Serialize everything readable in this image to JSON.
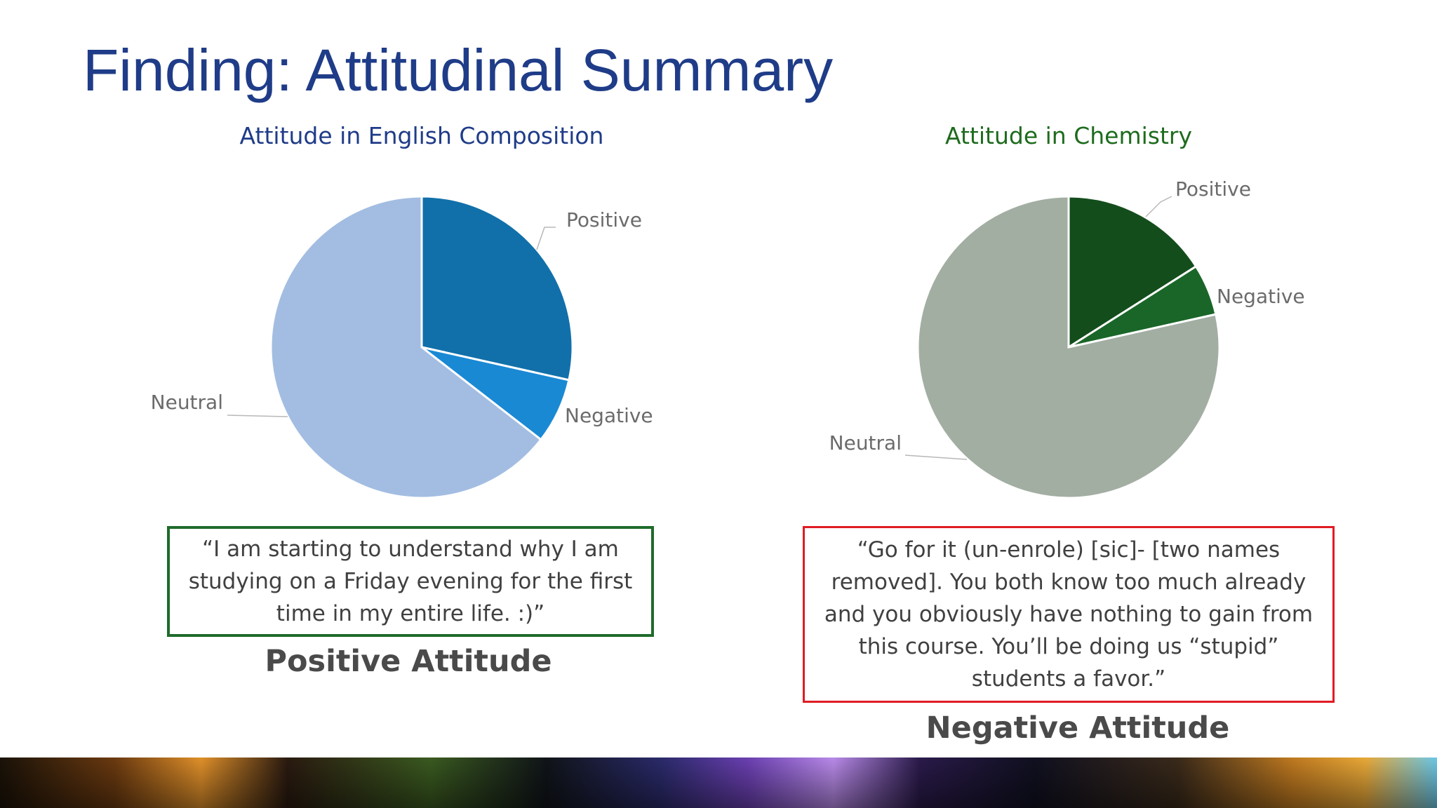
{
  "slide": {
    "title": "Finding: Attitudinal Summary"
  },
  "chart_data": [
    {
      "type": "pie",
      "title": "Attitude in English Composition",
      "labels": [
        "Positive",
        "Negative",
        "Neutral"
      ],
      "values": [
        28.5,
        7,
        64.5
      ],
      "colors": [
        "#1170aa",
        "#1a89d4",
        "#a3bde2"
      ],
      "title_color": "#1f3c88"
    },
    {
      "type": "pie",
      "title": "Attitude in Chemistry",
      "labels": [
        "Positive",
        "Negative",
        "Neutral"
      ],
      "values": [
        16,
        5.5,
        78.5
      ],
      "colors": [
        "#144d1c",
        "#1a6628",
        "#a3aea3"
      ],
      "title_color": "#1e6b1e"
    }
  ],
  "quotes": {
    "positive": "“I am starting to understand why I am studying on a Friday evening for the first time in my entire life. :)”",
    "negative": "“Go for it (un-enrole) [sic]- [two names removed]. You both know too much already and you obviously have nothing to gain from this course. You’ll be doing us “stupid” students a favor.”"
  },
  "labels": {
    "positive_attitude": "Positive Attitude",
    "negative_attitude": "Negative Attitude"
  }
}
